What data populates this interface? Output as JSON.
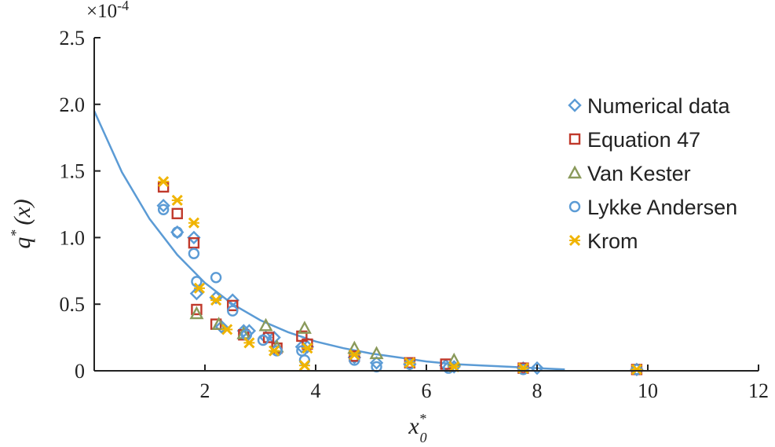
{
  "chart_data": {
    "type": "scatter",
    "scale_label": "×10",
    "scale_exponent": "-4",
    "ylabel": "q",
    "ylabel_sup": "*",
    "ylabel_tail": "(x)",
    "xlabel": "x",
    "xlabel_sup": "*",
    "xlabel_sub": "0",
    "xlim": [
      0,
      12
    ],
    "ylim": [
      0,
      2.5
    ],
    "x_ticks": [
      2,
      4,
      6,
      8,
      10,
      12
    ],
    "x_tick_labels": [
      "2",
      "4",
      "6",
      "8",
      "10",
      "12"
    ],
    "y_ticks": [
      0,
      0.5,
      1.0,
      1.5,
      2.0,
      2.5
    ],
    "y_tick_labels": [
      "0",
      "0.5",
      "1.0",
      "1.5",
      "2.0",
      "2.5"
    ],
    "grid": false,
    "legend_position": "right",
    "fit_curve": {
      "type": "line",
      "color": "#5b9bd5",
      "x": [
        0,
        0.5,
        1,
        1.5,
        2,
        2.5,
        3,
        3.5,
        4,
        4.5,
        5,
        5.5,
        6,
        6.5,
        7,
        7.5,
        8,
        8.5
      ],
      "y": [
        1.95,
        1.49,
        1.14,
        0.87,
        0.66,
        0.5,
        0.38,
        0.29,
        0.22,
        0.17,
        0.13,
        0.1,
        0.07,
        0.05,
        0.04,
        0.03,
        0.02,
        0.01
      ]
    },
    "series": [
      {
        "name": "Numerical data",
        "marker": "diamond",
        "color": "#5b9bd5",
        "x": [
          1.25,
          1.5,
          1.8,
          1.85,
          2.2,
          2.3,
          2.5,
          2.7,
          2.8,
          3.1,
          3.25,
          3.75,
          3.85,
          4.7,
          5.1,
          5.7,
          6.35,
          6.5,
          7.75,
          8.0,
          9.8
        ],
        "y": [
          1.24,
          1.04,
          1.0,
          0.58,
          0.55,
          0.33,
          0.53,
          0.3,
          0.3,
          0.25,
          0.25,
          0.18,
          0.18,
          0.1,
          0.06,
          0.05,
          0.04,
          0.03,
          0.02,
          0.02,
          0.01
        ]
      },
      {
        "name": "Equation 47",
        "marker": "square",
        "color": "#c0392b",
        "x": [
          1.25,
          1.5,
          1.8,
          1.85,
          2.2,
          2.5,
          2.7,
          3.15,
          3.3,
          3.75,
          3.85,
          4.7,
          5.7,
          6.35,
          7.75,
          9.8
        ],
        "y": [
          1.38,
          1.18,
          0.96,
          0.46,
          0.35,
          0.49,
          0.27,
          0.25,
          0.17,
          0.26,
          0.2,
          0.11,
          0.06,
          0.05,
          0.02,
          0.01
        ]
      },
      {
        "name": "Van Kester",
        "marker": "triangle",
        "color": "#8a9a5b",
        "x": [
          1.85,
          2.25,
          2.7,
          3.1,
          3.3,
          3.8,
          4.7,
          5.1,
          6.5
        ],
        "y": [
          0.43,
          0.35,
          0.28,
          0.34,
          0.18,
          0.32,
          0.17,
          0.13,
          0.08
        ]
      },
      {
        "name": "Lykke Andersen",
        "marker": "circle",
        "color": "#5b9bd5",
        "x": [
          1.25,
          1.5,
          1.8,
          1.85,
          2.2,
          2.5,
          2.75,
          3.05,
          3.3,
          3.75,
          3.8,
          4.7,
          5.1,
          5.7,
          6.4,
          7.75,
          9.8
        ],
        "y": [
          1.21,
          1.04,
          0.88,
          0.67,
          0.7,
          0.45,
          0.27,
          0.23,
          0.15,
          0.15,
          0.08,
          0.08,
          0.03,
          0.05,
          0.02,
          0.01,
          0.01
        ]
      },
      {
        "name": "Krom",
        "marker": "x",
        "color": "#f0b400",
        "x": [
          1.25,
          1.5,
          1.8,
          1.9,
          2.2,
          2.4,
          2.8,
          3.25,
          3.8,
          3.85,
          4.7,
          5.7,
          6.5,
          7.75,
          9.8
        ],
        "y": [
          1.42,
          1.28,
          1.11,
          0.62,
          0.53,
          0.31,
          0.21,
          0.15,
          0.04,
          0.17,
          0.12,
          0.06,
          0.03,
          0.02,
          0.01
        ]
      }
    ]
  }
}
